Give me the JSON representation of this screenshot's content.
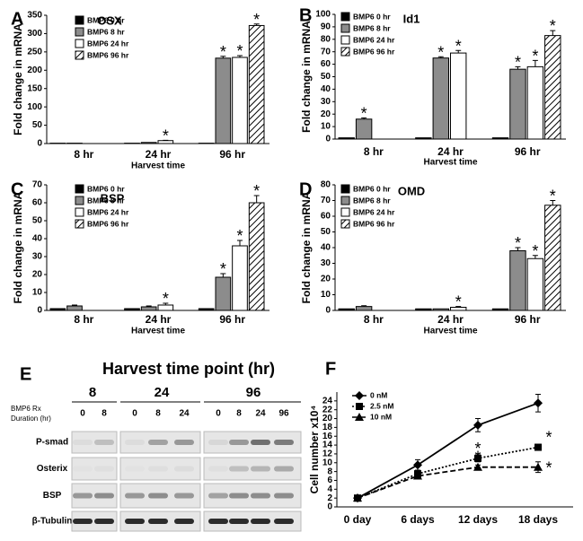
{
  "chart_data": [
    {
      "type": "bar",
      "panel": "A",
      "title": "OSX",
      "ylabel": "Fold change in mRNA",
      "xlabel": "Harvest time",
      "categories": [
        "8 hr",
        "24 hr",
        "96 hr"
      ],
      "ylim": [
        0,
        350
      ],
      "yticks": [
        0,
        50,
        100,
        150,
        200,
        250,
        300,
        350
      ],
      "series": [
        {
          "name": "BMP6 0 hr",
          "color": "#000000",
          "values": [
            1,
            1,
            1
          ]
        },
        {
          "name": "BMP6 8 hr",
          "color": "#8c8c8c",
          "values": [
            1,
            3,
            233
          ],
          "errors": [
            null,
            null,
            5
          ],
          "significance": [
            null,
            null,
            "*"
          ]
        },
        {
          "name": "BMP6 24 hr",
          "color": "#ffffff",
          "values": [
            null,
            8,
            235
          ],
          "errors": [
            null,
            1,
            5
          ],
          "significance": [
            null,
            "*",
            "*"
          ]
        },
        {
          "name": "BMP6 96 hr",
          "color": "#ffffff",
          "pattern": "hatch",
          "values": [
            null,
            null,
            322
          ],
          "errors": [
            null,
            null,
            4
          ],
          "significance": [
            null,
            null,
            "*"
          ]
        }
      ]
    },
    {
      "type": "bar",
      "panel": "B",
      "title": "Id1",
      "ylabel": "Fold change in mRNA",
      "xlabel": "Harvest time",
      "categories": [
        "8 hr",
        "24 hr",
        "96 hr"
      ],
      "ylim": [
        0,
        100
      ],
      "yticks": [
        0,
        10,
        20,
        30,
        40,
        50,
        60,
        70,
        80,
        90,
        100
      ],
      "series": [
        {
          "name": "BMP6 0 hr",
          "color": "#000000",
          "values": [
            1,
            1,
            1
          ]
        },
        {
          "name": "BMP6 8 hr",
          "color": "#8c8c8c",
          "values": [
            16,
            65,
            56
          ],
          "errors": [
            1,
            1,
            2
          ],
          "significance": [
            "*",
            "*",
            "*"
          ]
        },
        {
          "name": "BMP6 24 hr",
          "color": "#ffffff",
          "values": [
            null,
            69,
            58
          ],
          "errors": [
            null,
            2,
            5
          ],
          "significance": [
            null,
            "*",
            "*"
          ]
        },
        {
          "name": "BMP6 96 hr",
          "color": "#ffffff",
          "pattern": "hatch",
          "values": [
            null,
            null,
            83
          ],
          "errors": [
            null,
            null,
            4
          ],
          "significance": [
            null,
            null,
            "*"
          ]
        }
      ]
    },
    {
      "type": "bar",
      "panel": "C",
      "title": "BSP",
      "ylabel": "Fold change in mRNA",
      "xlabel": "Harvest time",
      "categories": [
        "8 hr",
        "24 hr",
        "96 hr"
      ],
      "ylim": [
        0,
        70
      ],
      "yticks": [
        0,
        10,
        20,
        30,
        40,
        50,
        60,
        70
      ],
      "series": [
        {
          "name": "BMP6 0 hr",
          "color": "#000000",
          "values": [
            1,
            1,
            1
          ]
        },
        {
          "name": "BMP6 8 hr",
          "color": "#8c8c8c",
          "values": [
            2.5,
            2,
            18.5
          ],
          "errors": [
            0.5,
            0.5,
            2
          ],
          "significance": [
            null,
            null,
            "*"
          ]
        },
        {
          "name": "BMP6 24 hr",
          "color": "#ffffff",
          "values": [
            null,
            3,
            36
          ],
          "errors": [
            null,
            1,
            3
          ],
          "significance": [
            null,
            "*",
            "*"
          ]
        },
        {
          "name": "BMP6 96 hr",
          "color": "#ffffff",
          "pattern": "hatch",
          "values": [
            null,
            null,
            60
          ],
          "errors": [
            null,
            null,
            4
          ],
          "significance": [
            null,
            null,
            "*"
          ]
        }
      ]
    },
    {
      "type": "bar",
      "panel": "D",
      "title": "OMD",
      "ylabel": "Fold change in mRNA",
      "xlabel": "Harvest time",
      "categories": [
        "8 hr",
        "24 hr",
        "96 hr"
      ],
      "ylim": [
        0,
        80
      ],
      "yticks": [
        0,
        10,
        20,
        30,
        40,
        50,
        60,
        70,
        80
      ],
      "series": [
        {
          "name": "BMP6 0 hr",
          "color": "#000000",
          "values": [
            1,
            1,
            1
          ]
        },
        {
          "name": "BMP6 8 hr",
          "color": "#8c8c8c",
          "values": [
            2.5,
            1,
            38
          ],
          "errors": [
            0.5,
            null,
            2
          ],
          "significance": [
            null,
            null,
            "*"
          ]
        },
        {
          "name": "BMP6 24 hr",
          "color": "#ffffff",
          "values": [
            null,
            2,
            33
          ],
          "errors": [
            null,
            0.5,
            2
          ],
          "significance": [
            null,
            "*",
            "*"
          ]
        },
        {
          "name": "BMP6 96 hr",
          "color": "#ffffff",
          "pattern": "hatch",
          "values": [
            null,
            null,
            67
          ],
          "errors": [
            null,
            null,
            3
          ],
          "significance": [
            null,
            null,
            "*"
          ]
        }
      ]
    },
    {
      "type": "line",
      "panel": "F",
      "ylabel": "Cell number x10⁴",
      "categories": [
        "0 day",
        "6 days",
        "12 days",
        "18 days"
      ],
      "ylim": [
        0,
        26
      ],
      "yticks": [
        0,
        2,
        4,
        6,
        8,
        10,
        12,
        14,
        16,
        18,
        20,
        22,
        24
      ],
      "series": [
        {
          "name": "0 nM",
          "color": "#000000",
          "marker": "diamond",
          "dash": "solid",
          "values": [
            2,
            9.5,
            18.5,
            23.5
          ],
          "errors": [
            0.3,
            1.2,
            1.5,
            2
          ]
        },
        {
          "name": "2.5 nM",
          "color": "#000000",
          "marker": "square",
          "dash": "dotted",
          "values": [
            2,
            7.5,
            11,
            13.5
          ],
          "errors": [
            0.3,
            0.8,
            0.8,
            0.7
          ],
          "significance": [
            null,
            null,
            "*",
            "*"
          ]
        },
        {
          "name": "10 nM",
          "color": "#000000",
          "marker": "triangle",
          "dash": "dashed",
          "values": [
            2,
            7,
            9,
            9
          ],
          "errors": [
            0.3,
            0.7,
            0.5,
            1.2
          ],
          "significance": [
            null,
            null,
            "*",
            "*"
          ]
        }
      ]
    }
  ],
  "blot": {
    "panel": "E",
    "title": "Harvest time point (hr)",
    "groups": [
      "8",
      "24",
      "96"
    ],
    "duration_label": [
      "BMP6 Rx",
      "Duration (hr)"
    ],
    "lanes": [
      [
        "0",
        "8"
      ],
      [
        "0",
        "8",
        "24"
      ],
      [
        "0",
        "8",
        "24",
        "96"
      ]
    ],
    "rows": [
      "P-smad",
      "Osterix",
      "BSP",
      "β-Tubulin"
    ]
  }
}
